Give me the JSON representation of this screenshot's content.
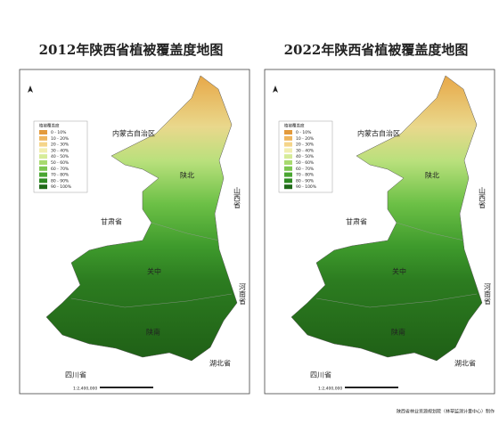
{
  "maps": [
    {
      "title": "2012年陕西省植被覆盖度地图"
    },
    {
      "title": "2022年陕西省植被覆盖度地图"
    }
  ],
  "labels": [
    "内蒙古自治区",
    "陕北",
    "山西省",
    "甘肃省",
    "关中",
    "河南省",
    "陕南",
    "湖北省",
    "四川省"
  ],
  "legend": {
    "title": "植被覆盖度",
    "items": [
      "0 - 10%",
      "10 - 20%",
      "20 - 30%",
      "30 - 40%",
      "40 - 50%",
      "50 - 60%",
      "60 - 70%",
      "70 - 80%",
      "80 - 90%",
      "90 - 100%"
    ],
    "colors": [
      "#e39a3c",
      "#efb65e",
      "#f5d58a",
      "#f1eeb0",
      "#d6ec98",
      "#a8da70",
      "#7cc650",
      "#4aa632",
      "#2e8a22",
      "#1f6a18"
    ]
  },
  "scale": "1:2,400,000",
  "footer": "陕西省林业资源规划院（林草监测计量中心）制作"
}
